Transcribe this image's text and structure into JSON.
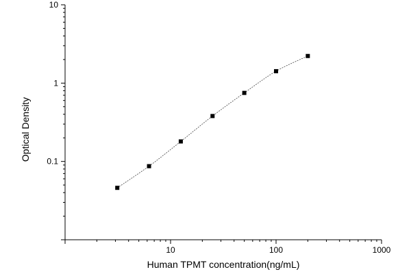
{
  "chart_data": {
    "type": "scatter",
    "title": "",
    "xlabel": "Human TPMT concentration(ng/mL)",
    "ylabel": "Optical Density",
    "xscale": "log",
    "yscale": "log",
    "xlim": [
      1,
      1000
    ],
    "ylim": [
      0.01,
      10
    ],
    "x_tick_labels": [
      {
        "value": 10,
        "label": "10"
      },
      {
        "value": 100,
        "label": "100"
      },
      {
        "value": 1000,
        "label": "1000"
      }
    ],
    "y_tick_labels": [
      {
        "value": 0.1,
        "label": "0.1"
      },
      {
        "value": 1,
        "label": "1"
      },
      {
        "value": 10,
        "label": "10"
      }
    ],
    "grid": false,
    "legend": "none",
    "series": [
      {
        "x": [
          3.125,
          6.25,
          12.5,
          25,
          50,
          100,
          200
        ],
        "y": [
          0.046,
          0.087,
          0.18,
          0.38,
          0.75,
          1.42,
          2.22
        ],
        "fit_curve": true
      }
    ],
    "colors": {
      "marker": "#000000",
      "curve": "#444444",
      "axis": "#000000"
    }
  }
}
